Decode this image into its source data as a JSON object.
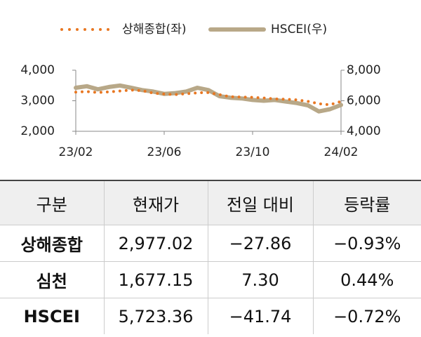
{
  "chart_data": {
    "type": "line",
    "x": [
      "23/02",
      null,
      null,
      null,
      null,
      null,
      null,
      null,
      "23/06",
      null,
      null,
      null,
      null,
      null,
      null,
      null,
      "23/10",
      null,
      null,
      null,
      null,
      null,
      null,
      null,
      "24/02"
    ],
    "series": [
      {
        "name": "상해종합(좌)",
        "color": "#e87722",
        "dash": "dotted",
        "values": [
          3280,
          3300,
          3270,
          3290,
          3320,
          3350,
          3330,
          3250,
          3220,
          3200,
          3230,
          3260,
          3270,
          3200,
          3130,
          3120,
          3110,
          3090,
          3060,
          3050,
          3030,
          2980,
          2900,
          2870,
          2977
        ]
      },
      {
        "name": "HSCEI(우)",
        "color": "#b8a888",
        "axis": "y2",
        "values": [
          6850,
          6950,
          6750,
          6900,
          7000,
          6850,
          6700,
          6600,
          6450,
          6500,
          6600,
          6850,
          6700,
          6300,
          6200,
          6150,
          6050,
          6000,
          6050,
          5950,
          5850,
          5700,
          5300,
          5450,
          5723
        ]
      }
    ],
    "ylim": [
      2000,
      4000
    ],
    "yticks": [
      {
        "value": 2000,
        "label": "2,000"
      },
      {
        "value": 3000,
        "label": "3,000"
      },
      {
        "value": 4000,
        "label": "4,000"
      }
    ],
    "y2lim": [
      4000,
      8000
    ],
    "y2ticks": [
      {
        "value": 4000,
        "label": "4,000"
      },
      {
        "value": 6000,
        "label": "6,000"
      },
      {
        "value": 8000,
        "label": "8,000"
      }
    ]
  },
  "table": {
    "header": [
      "구분",
      "현재가",
      "전일 대비",
      "등락률"
    ],
    "rows": [
      [
        "상해종합",
        "2,977.02",
        "−27.86",
        "−0.93%"
      ],
      [
        "심천",
        "1,677.15",
        "7.30",
        "0.44%"
      ],
      [
        "HSCEI",
        "5,723.36",
        "−41.74",
        "−0.72%"
      ]
    ]
  }
}
